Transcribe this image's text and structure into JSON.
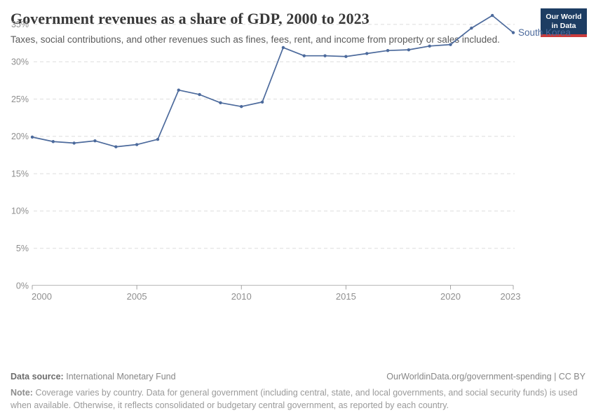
{
  "header": {
    "title": "Government revenues as a share of GDP, 2000 to 2023",
    "subtitle": "Taxes, social contributions, and other revenues such as fines, fees, rent, and income from property or sales included."
  },
  "logo": {
    "line1": "Our World",
    "line2": "in Data",
    "navy": "#1d3d63",
    "red": "#cb3b3c"
  },
  "chart_data": {
    "type": "line",
    "title": "Government revenues as a share of GDP, 2000 to 2023",
    "x": [
      2000,
      2001,
      2002,
      2003,
      2004,
      2005,
      2006,
      2007,
      2008,
      2009,
      2010,
      2011,
      2012,
      2013,
      2014,
      2015,
      2016,
      2017,
      2018,
      2019,
      2020,
      2021,
      2022,
      2023
    ],
    "series": [
      {
        "name": "South Korea",
        "values": [
          19.9,
          19.3,
          19.1,
          19.4,
          18.6,
          18.9,
          19.6,
          26.2,
          25.6,
          24.5,
          24.0,
          24.6,
          31.9,
          30.8,
          30.8,
          30.7,
          31.1,
          31.5,
          31.6,
          32.1,
          32.3,
          34.5,
          36.2,
          33.9
        ],
        "color": "#4c6a9c"
      }
    ],
    "xlabel": "",
    "ylabel": "",
    "x_range": [
      2000,
      2023
    ],
    "ylim": [
      0,
      35
    ],
    "x_ticks": [
      2000,
      2005,
      2010,
      2015,
      2020,
      2023
    ],
    "x_tick_labels": [
      "2000",
      "2005",
      "2010",
      "2015",
      "2020",
      "2023"
    ],
    "y_ticks": [
      0,
      5,
      10,
      15,
      20,
      25,
      30,
      35
    ],
    "y_tick_labels": [
      "0%",
      "5%",
      "10%",
      "15%",
      "20%",
      "25%",
      "30%",
      "35%"
    ],
    "grid": "horizontal-dashed",
    "legend_position": "end-of-line-label",
    "end_label": "South Korea",
    "colors": {
      "line": "#4c6a9c",
      "grid": "#dedede",
      "axis": "#b8b8b8",
      "tick": "#a3a3a3",
      "tick_label": "#8f8f8f"
    }
  },
  "footer": {
    "source_label": "Data source:",
    "source_value": "International Monetary Fund",
    "rights": "OurWorldinData.org/government-spending | CC BY",
    "note_label": "Note:",
    "note_text": "Coverage varies by country. Data for general government (including central, state, and local governments, and social security funds) is used when available. Otherwise, it reflects consolidated or budgetary central government, as reported by each country."
  }
}
